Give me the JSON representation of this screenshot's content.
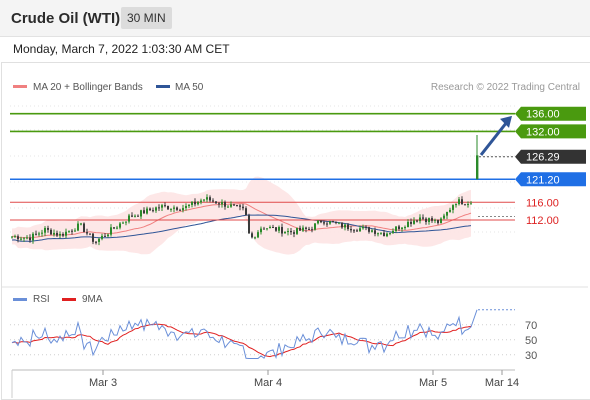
{
  "header": {
    "title": "Crude Oil (WTI)",
    "timeframe": "30 MIN"
  },
  "timestamp": "Monday, March 7, 2022 1:03:30 AM CET",
  "chart_data": {
    "type": "candlestick",
    "legend": [
      {
        "name": "MA 20 + Bollinger Bands",
        "color": "#f08080"
      },
      {
        "name": "MA 50",
        "color": "#2f5597"
      }
    ],
    "watermark": "Research © 2022 Trading Central",
    "x_ticks": [
      "Mar 3",
      "Mar 4",
      "Mar 5",
      "Mar 14"
    ],
    "price_levels": [
      {
        "value": "136.00",
        "price": 136.0,
        "kind": "resistance",
        "color": "#4a9a0f"
      },
      {
        "value": "132.00",
        "price": 132.0,
        "kind": "resistance",
        "color": "#4a9a0f"
      },
      {
        "value": "126.29",
        "price": 126.29,
        "kind": "last",
        "color": "#333333"
      },
      {
        "value": "121.20",
        "price": 121.2,
        "kind": "pivot",
        "color": "#1f6fe5"
      },
      {
        "value": "116.00",
        "price": 116.0,
        "kind": "support",
        "color": "#e04a4a"
      },
      {
        "value": "112.00",
        "price": 112.0,
        "kind": "support",
        "color": "#e04a4a"
      }
    ],
    "ylim": [
      98,
      140
    ],
    "rsi": {
      "legend": [
        {
          "name": "RSI",
          "color": "#6a8fd8"
        },
        {
          "name": "9MA",
          "color": "#e02020"
        }
      ],
      "ticks": [
        "70",
        "50",
        "30"
      ],
      "ylim": [
        15,
        95
      ],
      "last": 90
    }
  }
}
